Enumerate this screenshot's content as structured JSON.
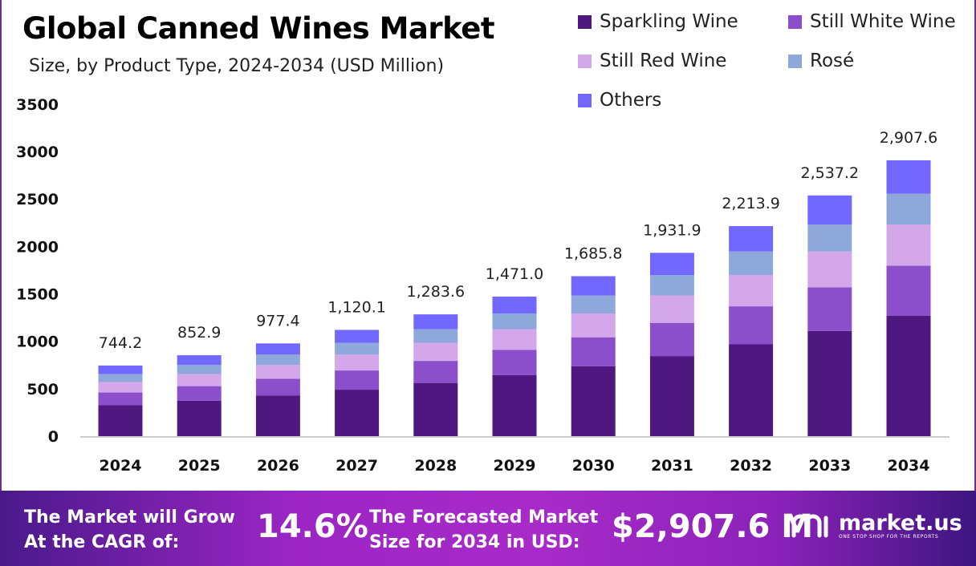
{
  "chart_data": {
    "type": "bar",
    "stacked": true,
    "title": "Global Canned Wines Market",
    "subtitle": "Size, by Product Type, 2024-2034 (USD Million)",
    "xlabel": "",
    "ylabel": "",
    "ylim": [
      0,
      3500
    ],
    "yticks": [
      "0",
      "500",
      "1000",
      "1500",
      "2000",
      "2500",
      "3000",
      "3500"
    ],
    "grid": false,
    "legend_position": "top-right",
    "categories": [
      "2024",
      "2025",
      "2026",
      "2027",
      "2028",
      "2029",
      "2030",
      "2031",
      "2032",
      "2033",
      "2034"
    ],
    "totals": [
      "744.2",
      "852.9",
      "977.4",
      "1,120.1",
      "1,283.6",
      "1,471.0",
      "1,685.8",
      "1,931.9",
      "2,213.9",
      "2,537.2",
      "2,907.6"
    ],
    "series": [
      {
        "name": "Sparkling Wine",
        "color": "#4f1780",
        "values": [
          325.2,
          372.7,
          427.1,
          489.5,
          560.9,
          642.8,
          736.7,
          844.2,
          967.5,
          1108.8,
          1270.6
        ]
      },
      {
        "name": "Still White Wine",
        "color": "#8b4fcc",
        "values": [
          134.7,
          154.4,
          176.9,
          202.7,
          232.3,
          266.3,
          305.1,
          349.7,
          400.7,
          459.2,
          526.3
        ]
      },
      {
        "name": "Still Red Wine",
        "color": "#d4a6ea",
        "values": [
          110.9,
          127.1,
          145.6,
          166.9,
          191.3,
          219.2,
          251.2,
          287.9,
          329.9,
          378.0,
          433.2
        ]
      },
      {
        "name": "Rosé",
        "color": "#8fa8dc",
        "values": [
          83.4,
          95.5,
          109.5,
          125.5,
          143.8,
          164.8,
          188.8,
          216.4,
          248.0,
          284.2,
          325.7
        ]
      },
      {
        "name": "Others",
        "color": "#7268ff",
        "values": [
          90.0,
          103.2,
          118.3,
          135.5,
          155.3,
          177.9,
          204.0,
          233.7,
          267.8,
          307.0,
          351.8
        ]
      }
    ]
  },
  "footer": {
    "cagr_label_1": "The Market will Grow",
    "cagr_label_2": "At the CAGR of:",
    "cagr_value": "14.6%",
    "forecast_label_1": "The Forecasted Market",
    "forecast_label_2": "Size for 2034 in USD:",
    "forecast_value": "$2,907.6 M",
    "logo_text": "market.us",
    "logo_tagline": "ONE STOP SHOP FOR THE REPORTS"
  }
}
